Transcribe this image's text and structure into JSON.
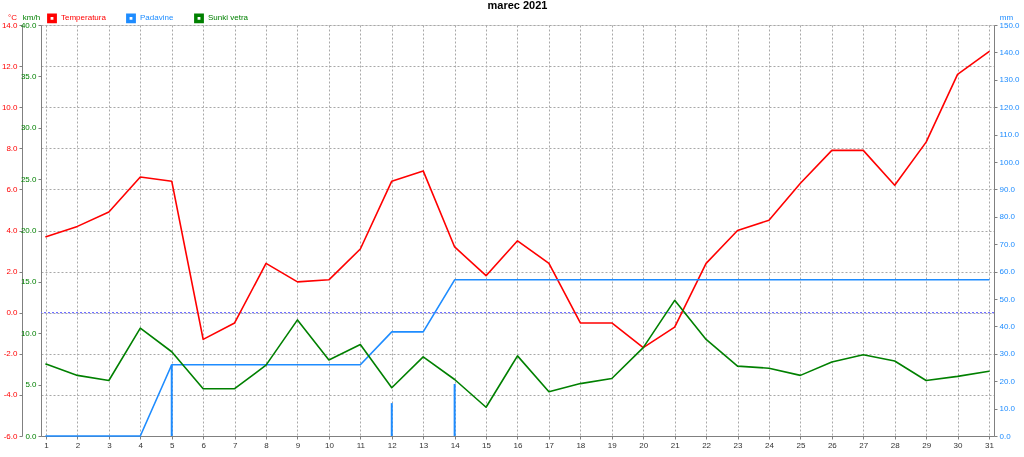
{
  "chart_data": {
    "type": "line",
    "title": "marec 2021",
    "ylabel": "°C",
    "y2label": "km/h",
    "y3label": "mm",
    "x": [
      1,
      2,
      3,
      4,
      5,
      6,
      7,
      8,
      9,
      10,
      11,
      12,
      13,
      14,
      15,
      16,
      17,
      18,
      19,
      20,
      21,
      22,
      23,
      24,
      25,
      26,
      27,
      28,
      29,
      30,
      31
    ],
    "xlim": [
      1,
      31
    ],
    "xticks": [
      1,
      2,
      3,
      4,
      5,
      6,
      7,
      8,
      9,
      10,
      11,
      12,
      13,
      14,
      15,
      16,
      17,
      18,
      19,
      20,
      21,
      22,
      23,
      24,
      25,
      26,
      27,
      28,
      29,
      30,
      31
    ],
    "ylim": [
      -6,
      14
    ],
    "yticks": [
      {
        "value": -6,
        "label": "-6.0"
      },
      {
        "value": -4,
        "label": "-4.0"
      },
      {
        "value": -2,
        "label": "-2.0"
      },
      {
        "value": 0,
        "label": "0.0"
      },
      {
        "value": 2,
        "label": "2.0"
      },
      {
        "value": 4,
        "label": "4.0"
      },
      {
        "value": 6,
        "label": "6.0"
      },
      {
        "value": 8,
        "label": "8.0"
      },
      {
        "value": 10,
        "label": "10.0"
      },
      {
        "value": 12,
        "label": "12.0"
      },
      {
        "value": 14,
        "label": "14.0"
      }
    ],
    "y2lim": [
      0,
      40
    ],
    "y2ticks": [
      {
        "value": 0,
        "label": "0.0"
      },
      {
        "value": 5,
        "label": "5.0"
      },
      {
        "value": 10,
        "label": "10.0"
      },
      {
        "value": 15,
        "label": "15.0"
      },
      {
        "value": 20,
        "label": "20.0"
      },
      {
        "value": 25,
        "label": "25.0"
      },
      {
        "value": 30,
        "label": "30.0"
      },
      {
        "value": 35,
        "label": "35.0"
      },
      {
        "value": 40,
        "label": "40.0"
      }
    ],
    "y3lim": [
      0,
      150
    ],
    "y3ticks": [
      {
        "value": 0,
        "label": "0.0"
      },
      {
        "value": 10,
        "label": "10.0"
      },
      {
        "value": 20,
        "label": "20.0"
      },
      {
        "value": 30,
        "label": "30.0"
      },
      {
        "value": 40,
        "label": "40.0"
      },
      {
        "value": 50,
        "label": "50.0"
      },
      {
        "value": 60,
        "label": "60.0"
      },
      {
        "value": 70,
        "label": "70.0"
      },
      {
        "value": 80,
        "label": "80.0"
      },
      {
        "value": 90,
        "label": "90.0"
      },
      {
        "value": 100,
        "label": "100.0"
      },
      {
        "value": 110,
        "label": "110.0"
      },
      {
        "value": 120,
        "label": "120.0"
      },
      {
        "value": 130,
        "label": "130.0"
      },
      {
        "value": 140,
        "label": "140.0"
      },
      {
        "value": 150,
        "label": "150.0"
      }
    ],
    "series": [
      {
        "name": "Temperatura",
        "color": "#ff0000",
        "values": [
          3.7,
          4.2,
          4.9,
          6.6,
          6.4,
          -1.3,
          -0.5,
          2.4,
          1.5,
          1.6,
          3.1,
          6.4,
          6.9,
          3.2,
          1.8,
          3.5,
          2.4,
          -0.5,
          -0.5,
          -1.7,
          -0.7,
          2.4,
          4.0,
          4.5,
          6.3,
          7.9,
          7.9,
          6.2,
          8.3,
          11.6,
          12.7
        ]
      },
      {
        "name": "Padavine",
        "color": "#1e8cff",
        "axis": "y3",
        "values": [
          0,
          0,
          0,
          0,
          26,
          26,
          26,
          26,
          26,
          26,
          26,
          38,
          38,
          57,
          57,
          57,
          57,
          57,
          57,
          57,
          57,
          57,
          57,
          57,
          57,
          57,
          57,
          57,
          57,
          57,
          57
        ]
      },
      {
        "name": "Sunki vetra",
        "color": "#008000",
        "axis": "y2",
        "values": [
          7.0,
          5.9,
          5.4,
          10.5,
          8.2,
          4.6,
          4.6,
          6.9,
          11.3,
          7.4,
          8.9,
          4.7,
          7.7,
          5.5,
          2.8,
          7.8,
          4.3,
          5.1,
          5.6,
          8.6,
          13.2,
          9.4,
          6.8,
          6.6,
          5.9,
          7.2,
          7.9,
          7.3,
          5.4,
          5.8,
          6.3
        ]
      },
      {
        "type": "bar",
        "color": "#1e8cff",
        "axis": "y3",
        "values": [
          null,
          null,
          null,
          null,
          26,
          null,
          null,
          null,
          null,
          null,
          null,
          12,
          null,
          19,
          null,
          null,
          null,
          null,
          null,
          null,
          null,
          null,
          null,
          null,
          null,
          null,
          null,
          null,
          null,
          null,
          null
        ]
      }
    ],
    "ref_lines": [
      {
        "axis": "y",
        "value": 0,
        "color": "#7070ff",
        "line_style": "dotted"
      }
    ],
    "grid": true,
    "legend": "top left"
  }
}
